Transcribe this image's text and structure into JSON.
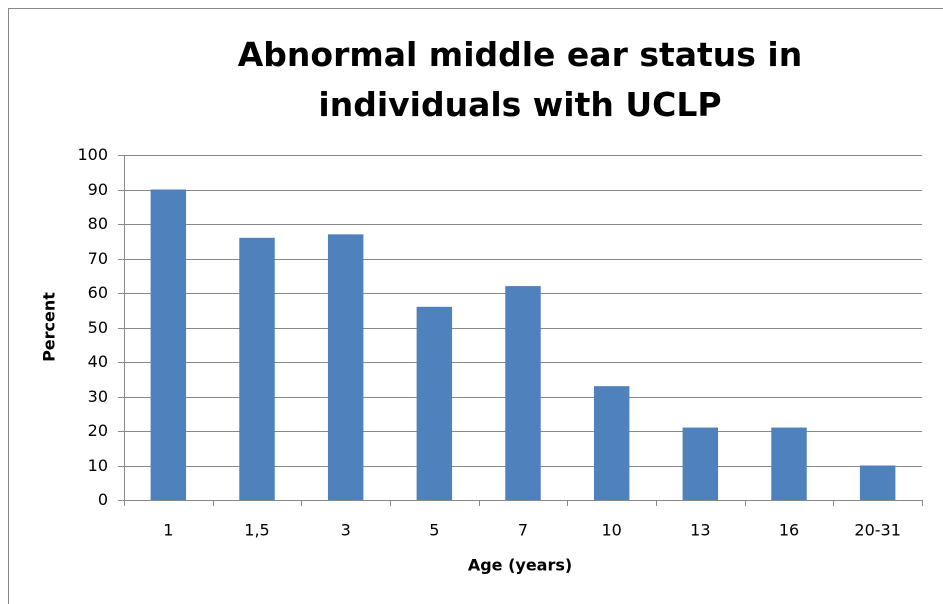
{
  "chart_data": {
    "type": "bar",
    "title": "Abnormal middle ear status in individuals with UCLP",
    "categories": [
      "1",
      "1,5",
      "3",
      "5",
      "7",
      "10",
      "13",
      "16",
      "20-31"
    ],
    "values": [
      90,
      76,
      77,
      56,
      62,
      33,
      21,
      21,
      10
    ],
    "color": "#4f81bd",
    "xlabel": "Age (years)",
    "ylabel": "Percent",
    "ylim": [
      0,
      100
    ],
    "yticks": [
      0,
      10,
      20,
      30,
      40,
      50,
      60,
      70,
      80,
      90,
      100
    ],
    "grid": true
  }
}
